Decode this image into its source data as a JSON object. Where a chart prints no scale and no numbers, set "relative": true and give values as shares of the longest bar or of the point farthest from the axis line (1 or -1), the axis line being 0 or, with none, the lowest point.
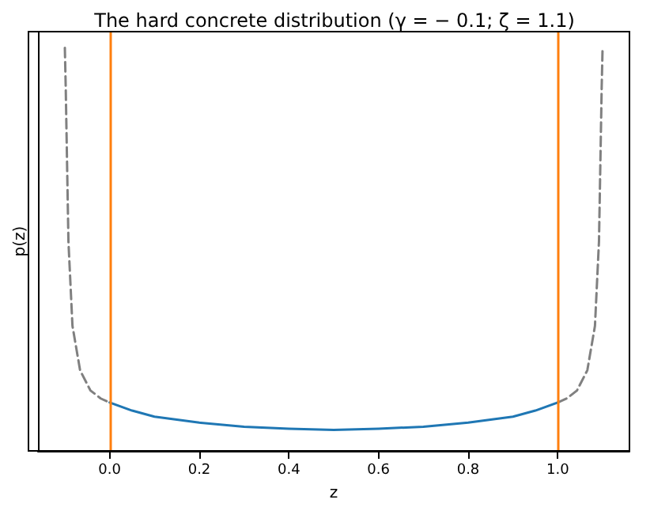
{
  "chart_data": {
    "type": "line",
    "title": "The hard concrete distribution (γ = − 0.1; ζ = 1.1)",
    "xlabel": "z",
    "ylabel": "p(z)",
    "relative": true,
    "xlim": [
      -0.16,
      1.16
    ],
    "xticks": [
      {
        "value": 0,
        "label": "0.0"
      },
      {
        "value": 0.2,
        "label": "0.2"
      },
      {
        "value": 0.4,
        "label": "0.4"
      },
      {
        "value": 0.6,
        "label": "0.6"
      },
      {
        "value": 0.8,
        "label": "0.8"
      },
      {
        "value": 1,
        "label": "1.0"
      }
    ],
    "grid": false,
    "marker": "none",
    "series": [
      {
        "color": "#808080",
        "line_style": "dashed",
        "x": [
          -0.1,
          -0.098,
          -0.092,
          -0.083,
          -0.066,
          -0.043,
          -0.02,
          0,
          0.5,
          1,
          1.02,
          1.043,
          1.066,
          1.083,
          1.092,
          1.098,
          1.1
        ],
        "values": [
          1.0,
          0.9,
          0.52,
          0.31,
          0.2,
          0.15,
          0.13,
          0.12,
          null,
          0.12,
          0.13,
          0.15,
          0.2,
          0.31,
          0.52,
          0.9,
          1.0
        ]
      },
      {
        "color": "#1f77b4",
        "line_style": "solid",
        "x": [
          0,
          0.05,
          0.1,
          0.2,
          0.3,
          0.4,
          0.5,
          0.6,
          0.7,
          0.8,
          0.9,
          0.95,
          1.0
        ],
        "values": [
          0.12,
          0.1,
          0.085,
          0.07,
          0.06,
          0.055,
          0.052,
          0.055,
          0.06,
          0.07,
          0.085,
          0.1,
          0.12
        ]
      }
    ],
    "ref_lines": [
      {
        "axis": "x",
        "value": 0,
        "color": "#ff7f0e"
      },
      {
        "axis": "x",
        "value": 1,
        "color": "#ff7f0e"
      }
    ]
  }
}
